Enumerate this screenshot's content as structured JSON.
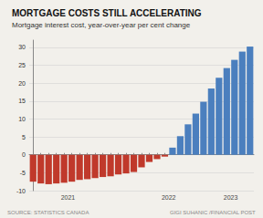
{
  "chart_data": {
    "type": "bar",
    "title": "MORTGAGE COSTS STILL ACCELERATING",
    "subtitle": "Mortgage interest cost, year-over-year per cent change",
    "notes": [
      "SOURCE: STATISTICS CANADA",
      "GIGI SUHANIC /FINANCIAL POST"
    ],
    "categories": [
      null,
      null,
      null,
      null,
      null,
      null,
      null,
      null,
      null,
      null,
      null,
      null,
      null,
      null,
      null,
      null,
      null,
      null,
      null,
      null,
      null,
      null,
      null,
      null,
      null,
      null,
      null,
      null,
      null
    ],
    "values": [
      -7.5,
      -8.0,
      -8.2,
      -8.0,
      -7.8,
      -7.5,
      -7.0,
      -6.8,
      -6.5,
      -6.2,
      -6.0,
      -5.5,
      -5.2,
      -4.8,
      -3.5,
      -2.0,
      -1.2,
      -0.5,
      2.0,
      5.2,
      8.5,
      11.5,
      14.8,
      18.5,
      21.5,
      24.2,
      26.5,
      28.8,
      30.2
    ],
    "colors": [
      "#C0392B",
      "#C0392B",
      "#C0392B",
      "#C0392B",
      "#C0392B",
      "#C0392B",
      "#C0392B",
      "#C0392B",
      "#C0392B",
      "#C0392B",
      "#C0392B",
      "#C0392B",
      "#C0392B",
      "#C0392B",
      "#C0392B",
      "#C0392B",
      "#C0392B",
      "#C0392B",
      "#4B7FBE",
      "#4B7FBE",
      "#4B7FBE",
      "#4B7FBE",
      "#4B7FBE",
      "#4B7FBE",
      "#4B7FBE",
      "#4B7FBE",
      "#4B7FBE",
      "#4B7FBE",
      "#4B7FBE"
    ],
    "annotations": [
      {
        "text": "2021",
        "x": 4.5
      },
      {
        "text": "2022",
        "x": 17.5
      },
      {
        "text": "2023",
        "x": 25.5
      }
    ],
    "ylim": [
      -10,
      32
    ],
    "yticks": [
      -10,
      -5,
      0,
      5,
      10,
      15,
      20,
      25,
      30
    ],
    "grid": true
  }
}
